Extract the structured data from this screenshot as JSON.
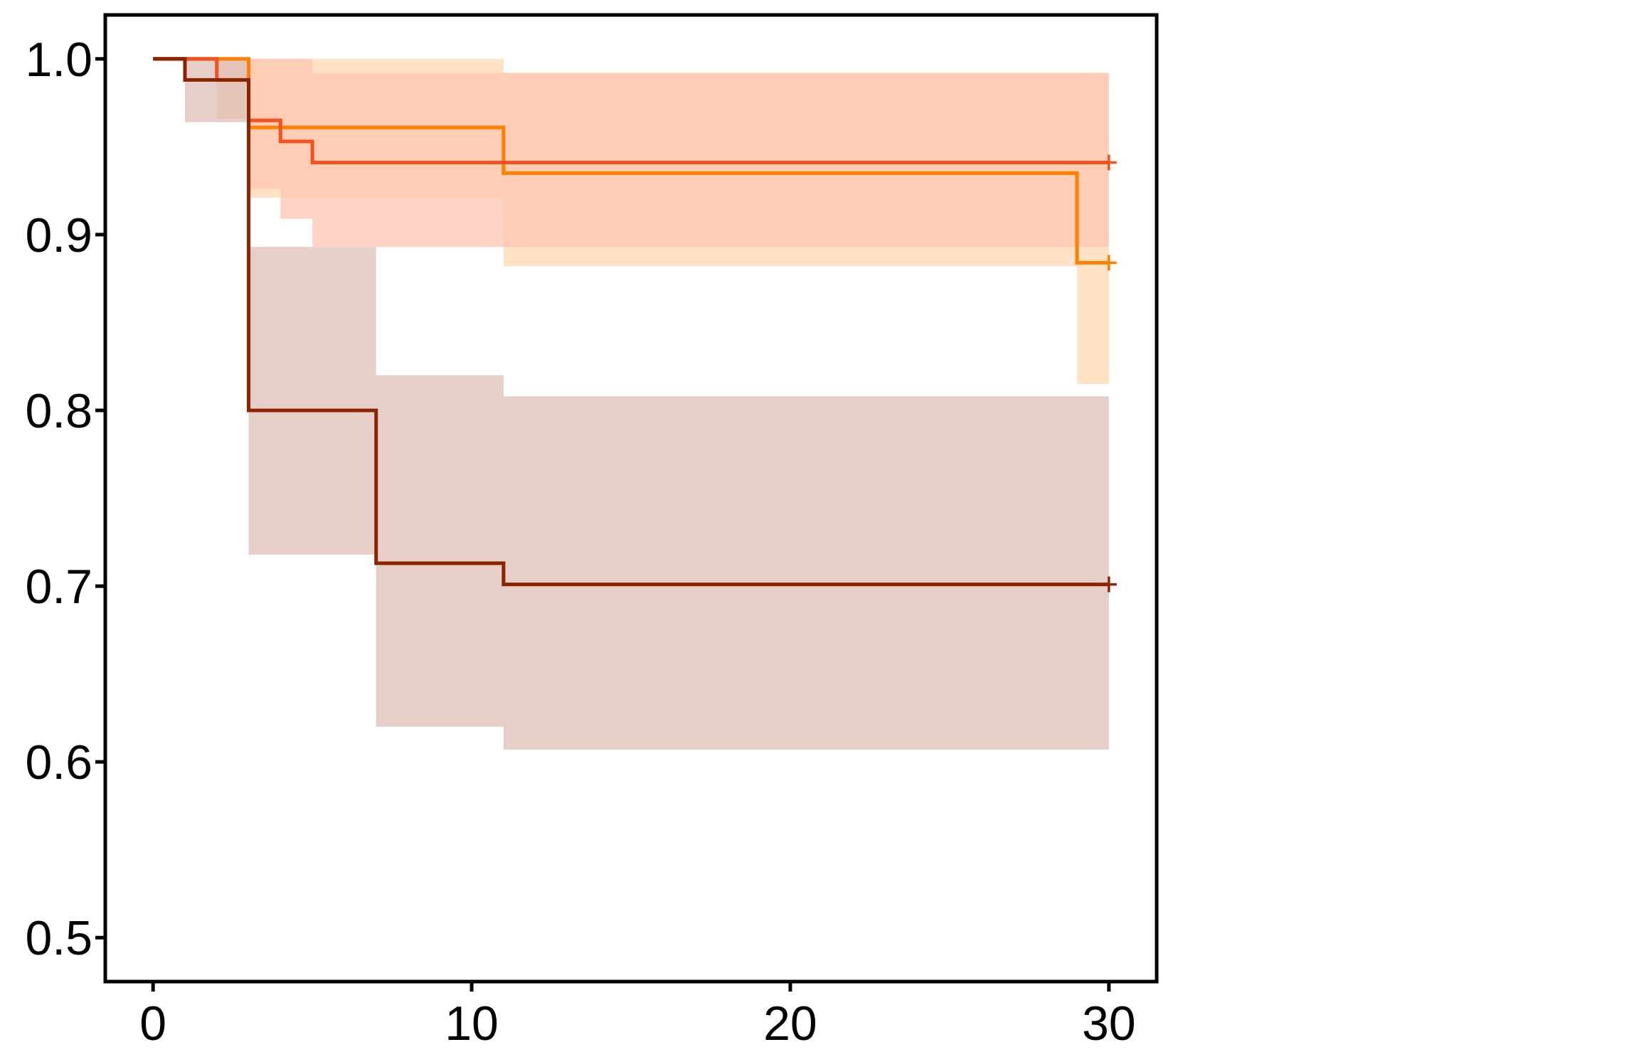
{
  "chart_data": {
    "type": "line",
    "title": "",
    "xlabel": "",
    "ylabel": "",
    "xlim": [
      -1.5,
      31.5
    ],
    "ylim": [
      0.475,
      1.025
    ],
    "x_ticks": [
      0,
      10,
      20,
      30
    ],
    "x_tick_labels": [
      "0",
      "10",
      "20",
      "30"
    ],
    "y_ticks": [
      0.5,
      0.6,
      0.7,
      0.8,
      0.9,
      1.0
    ],
    "y_tick_labels": [
      "0.5",
      "0.6",
      "0.7",
      "0.8",
      "0.9",
      "1.0"
    ],
    "grid": false,
    "legend": "none",
    "step": true,
    "censor_marker": "+",
    "series": [
      {
        "color": "#ff7f00",
        "band_color": "#ffd8b0",
        "x": [
          0,
          3,
          11,
          29,
          30
        ],
        "y": [
          1.0,
          0.961,
          0.935,
          0.884,
          0.884
        ],
        "ci_lower": [
          1.0,
          0.921,
          0.882,
          0.815,
          0.815
        ],
        "ci_upper": [
          1.0,
          1.0,
          0.992,
          0.992,
          0.992
        ],
        "censored_at": [
          30
        ]
      },
      {
        "color": "#f4511e",
        "band_color": "#ffc4b0",
        "x": [
          0,
          2,
          3,
          4,
          5,
          30
        ],
        "y": [
          1.0,
          0.988,
          0.965,
          0.953,
          0.941,
          0.941
        ],
        "ci_lower": [
          1.0,
          0.966,
          0.926,
          0.909,
          0.893,
          0.893
        ],
        "ci_upper": [
          1.0,
          1.0,
          1.0,
          1.0,
          0.992,
          0.992
        ],
        "censored_at": [
          30
        ]
      },
      {
        "color": "#8b2500",
        "band_color": "#dcbfb6",
        "x": [
          0,
          1,
          3,
          7,
          11,
          30
        ],
        "y": [
          1.0,
          0.988,
          0.8,
          0.713,
          0.701,
          0.701
        ],
        "ci_lower": [
          1.0,
          0.964,
          0.718,
          0.62,
          0.607,
          0.607
        ],
        "ci_upper": [
          1.0,
          1.0,
          0.893,
          0.82,
          0.808,
          0.808
        ],
        "censored_at": [
          30
        ]
      }
    ]
  }
}
